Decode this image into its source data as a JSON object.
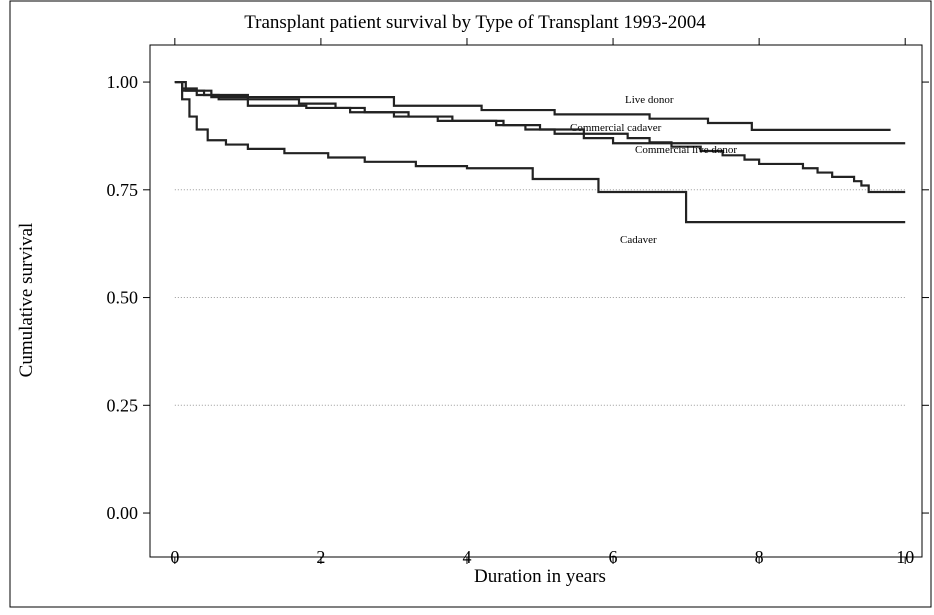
{
  "chart_data": {
    "type": "step-line",
    "step": "post",
    "title": "Transplant patient survival by Type of Transplant 1993-2004",
    "x_label": "Duration in years",
    "y_label": "Cumulative survival",
    "xlim": [
      -0.34,
      10.23
    ],
    "ylim": [
      -0.102,
      1.086
    ],
    "xticks": [
      0,
      2,
      4,
      6,
      8,
      10
    ],
    "yticks": [
      {
        "value": 0,
        "label": "0.00"
      },
      {
        "value": 0.25,
        "label": "0.25"
      },
      {
        "value": 0.5,
        "label": "0.50"
      },
      {
        "value": 0.75,
        "label": "0.75"
      },
      {
        "value": 1,
        "label": "1.00"
      }
    ],
    "grid": true,
    "series": [
      {
        "name": "Live donor",
        "color": "#222222",
        "x": [
          0,
          0.1,
          0.5,
          3,
          4.2,
          5.2,
          6.5,
          7.3,
          7.9,
          9.8
        ],
        "y": [
          1,
          0.98,
          0.965,
          0.945,
          0.935,
          0.925,
          0.915,
          0.905,
          0.889,
          0.889
        ]
      },
      {
        "name": "Commercial cadaver",
        "color": "#222222",
        "x": [
          0,
          0.1,
          0.3,
          0.6,
          1,
          1.8,
          2.4,
          3,
          3.8,
          4.4,
          4.8,
          5.2,
          5.6,
          6,
          10
        ],
        "y": [
          1,
          0.985,
          0.97,
          0.96,
          0.945,
          0.94,
          0.93,
          0.92,
          0.91,
          0.9,
          0.89,
          0.88,
          0.87,
          0.858,
          0.858
        ]
      },
      {
        "name": "Commercial live donor",
        "color": "#222222",
        "x": [
          0,
          0.15,
          0.4,
          1,
          1.7,
          2.2,
          2.6,
          3.2,
          3.6,
          4.5,
          5,
          5.6,
          6.2,
          6.5,
          6.8,
          7.2,
          7.5,
          7.8,
          8,
          8.6,
          8.8,
          9,
          9.3,
          9.4,
          9.5,
          10
        ],
        "y": [
          1,
          0.98,
          0.97,
          0.96,
          0.95,
          0.94,
          0.93,
          0.92,
          0.91,
          0.9,
          0.89,
          0.88,
          0.87,
          0.86,
          0.85,
          0.84,
          0.83,
          0.82,
          0.81,
          0.8,
          0.79,
          0.78,
          0.77,
          0.76,
          0.745,
          0.745
        ]
      },
      {
        "name": "Cadaver",
        "color": "#222222",
        "x": [
          0,
          0.1,
          0.2,
          0.3,
          0.45,
          0.7,
          1,
          1.5,
          2.1,
          2.6,
          3.3,
          4,
          4.9,
          5.8,
          7,
          10
        ],
        "y": [
          1,
          0.96,
          0.92,
          0.89,
          0.865,
          0.855,
          0.845,
          0.835,
          0.825,
          0.815,
          0.805,
          0.8,
          0.775,
          0.745,
          0.675,
          0.675
        ]
      }
    ]
  }
}
